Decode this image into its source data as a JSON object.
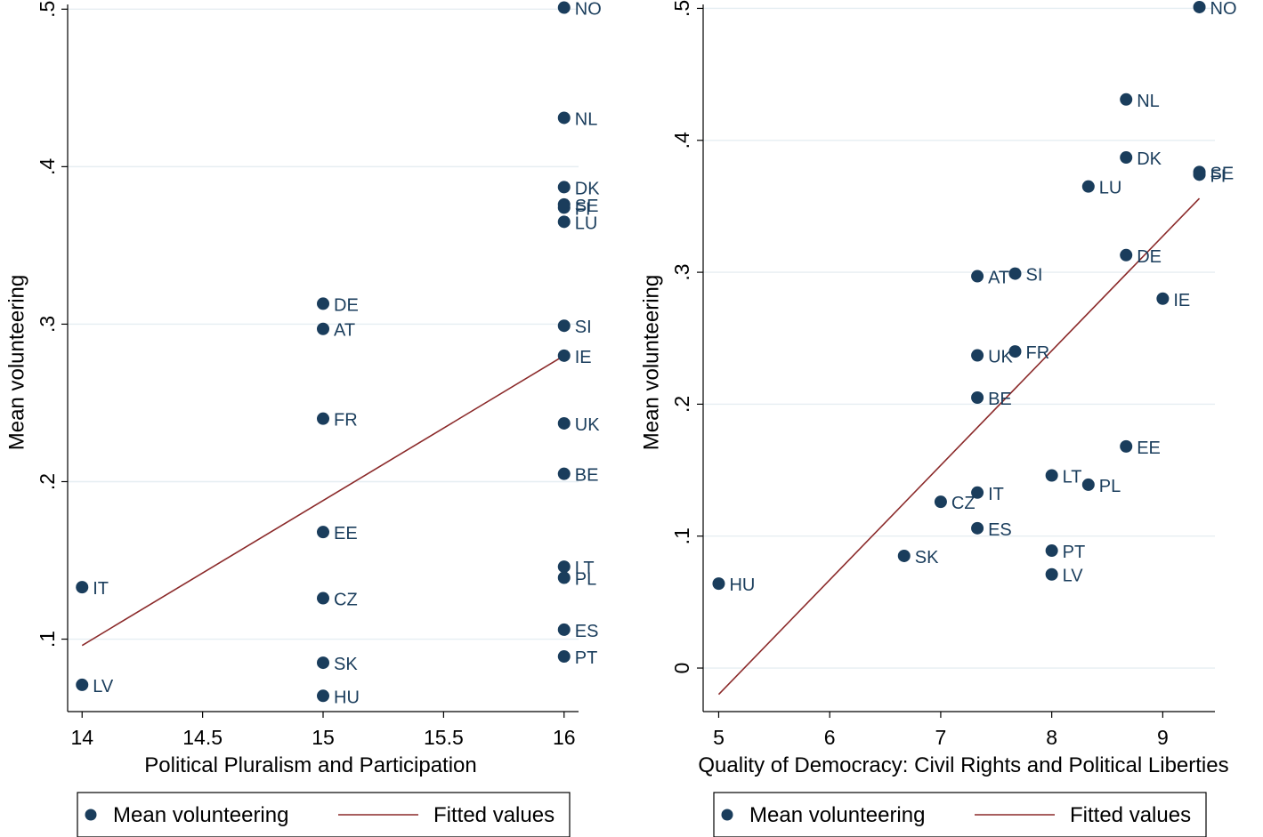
{
  "colors": {
    "marker": "#1a3d5c",
    "fit_line": "#8b2a2a",
    "grid": "#e6eef2"
  },
  "chart_data": [
    {
      "type": "scatter",
      "xlabel": "Political Pluralism and Participation",
      "ylabel": "Mean volunteering",
      "xlim": [
        13.94,
        16.06
      ],
      "ylim": [
        0.054,
        0.503
      ],
      "xticks": [
        14,
        14.5,
        15,
        15.5,
        16
      ],
      "xtick_labels": [
        "14",
        "14.5",
        "15",
        "15.5",
        "16"
      ],
      "yticks": [
        0.1,
        0.2,
        0.3,
        0.4,
        0.5
      ],
      "ytick_labels": [
        ".1",
        ".2",
        ".3",
        ".4",
        ".5"
      ],
      "grid": true,
      "legend": {
        "position": "bottom",
        "entries": [
          "Mean volunteering",
          "Fitted values"
        ]
      },
      "series": [
        {
          "name": "Mean volunteering",
          "points": [
            {
              "label": "NO",
              "x": 16,
              "y": 0.501
            },
            {
              "label": "NL",
              "x": 16,
              "y": 0.431
            },
            {
              "label": "DK",
              "x": 16,
              "y": 0.387
            },
            {
              "label": "SE",
              "x": 16,
              "y": 0.376
            },
            {
              "label": "FI",
              "x": 16,
              "y": 0.374
            },
            {
              "label": "LU",
              "x": 16,
              "y": 0.365
            },
            {
              "label": "SI",
              "x": 16,
              "y": 0.299
            },
            {
              "label": "IE",
              "x": 16,
              "y": 0.28
            },
            {
              "label": "UK",
              "x": 16,
              "y": 0.237
            },
            {
              "label": "BE",
              "x": 16,
              "y": 0.205
            },
            {
              "label": "LT",
              "x": 16,
              "y": 0.146
            },
            {
              "label": "PL",
              "x": 16,
              "y": 0.139
            },
            {
              "label": "ES",
              "x": 16,
              "y": 0.106
            },
            {
              "label": "PT",
              "x": 16,
              "y": 0.089
            },
            {
              "label": "DE",
              "x": 15,
              "y": 0.313
            },
            {
              "label": "AT",
              "x": 15,
              "y": 0.297
            },
            {
              "label": "FR",
              "x": 15,
              "y": 0.24
            },
            {
              "label": "EE",
              "x": 15,
              "y": 0.168
            },
            {
              "label": "CZ",
              "x": 15,
              "y": 0.126
            },
            {
              "label": "SK",
              "x": 15,
              "y": 0.085
            },
            {
              "label": "HU",
              "x": 15,
              "y": 0.064
            },
            {
              "label": "IT",
              "x": 14,
              "y": 0.133
            },
            {
              "label": "LV",
              "x": 14,
              "y": 0.071
            }
          ]
        },
        {
          "name": "Fitted values",
          "line": [
            {
              "x": 14,
              "y": 0.096
            },
            {
              "x": 16,
              "y": 0.28
            }
          ]
        }
      ]
    },
    {
      "type": "scatter",
      "xlabel": "Quality of Democracy: Civil Rights and Political Liberties",
      "ylabel": "Mean volunteering",
      "xlim": [
        4.86,
        9.47
      ],
      "ylim": [
        -0.033,
        0.503
      ],
      "xticks": [
        5,
        6,
        7,
        8,
        9
      ],
      "xtick_labels": [
        "5",
        "6",
        "7",
        "8",
        "9"
      ],
      "yticks": [
        0,
        0.1,
        0.2,
        0.3,
        0.4,
        0.5
      ],
      "ytick_labels": [
        "0",
        ".1",
        ".2",
        ".3",
        ".4",
        ".5"
      ],
      "grid": true,
      "legend": {
        "position": "bottom",
        "entries": [
          "Mean volunteering",
          "Fitted values"
        ]
      },
      "series": [
        {
          "name": "Mean volunteering",
          "points": [
            {
              "label": "NO",
              "x": 9.33,
              "y": 0.501
            },
            {
              "label": "NL",
              "x": 8.67,
              "y": 0.431
            },
            {
              "label": "DK",
              "x": 8.67,
              "y": 0.387
            },
            {
              "label": "SE",
              "x": 9.33,
              "y": 0.376
            },
            {
              "label": "FI",
              "x": 9.33,
              "y": 0.374
            },
            {
              "label": "LU",
              "x": 8.33,
              "y": 0.365
            },
            {
              "label": "DE",
              "x": 8.67,
              "y": 0.313
            },
            {
              "label": "IE",
              "x": 9.0,
              "y": 0.28
            },
            {
              "label": "AT",
              "x": 7.33,
              "y": 0.297
            },
            {
              "label": "SI",
              "x": 7.67,
              "y": 0.299
            },
            {
              "label": "UK",
              "x": 7.33,
              "y": 0.237
            },
            {
              "label": "FR",
              "x": 7.67,
              "y": 0.24
            },
            {
              "label": "BE",
              "x": 7.33,
              "y": 0.205
            },
            {
              "label": "EE",
              "x": 8.67,
              "y": 0.168
            },
            {
              "label": "LT",
              "x": 8.0,
              "y": 0.146
            },
            {
              "label": "PL",
              "x": 8.33,
              "y": 0.139
            },
            {
              "label": "IT",
              "x": 7.33,
              "y": 0.133
            },
            {
              "label": "CZ",
              "x": 7.0,
              "y": 0.126
            },
            {
              "label": "ES",
              "x": 7.33,
              "y": 0.106
            },
            {
              "label": "SK",
              "x": 6.67,
              "y": 0.085
            },
            {
              "label": "PT",
              "x": 8.0,
              "y": 0.089
            },
            {
              "label": "LV",
              "x": 8.0,
              "y": 0.071
            },
            {
              "label": "HU",
              "x": 5.0,
              "y": 0.064
            }
          ]
        },
        {
          "name": "Fitted values",
          "line": [
            {
              "x": 5.0,
              "y": -0.02
            },
            {
              "x": 9.33,
              "y": 0.356
            }
          ]
        }
      ]
    }
  ]
}
